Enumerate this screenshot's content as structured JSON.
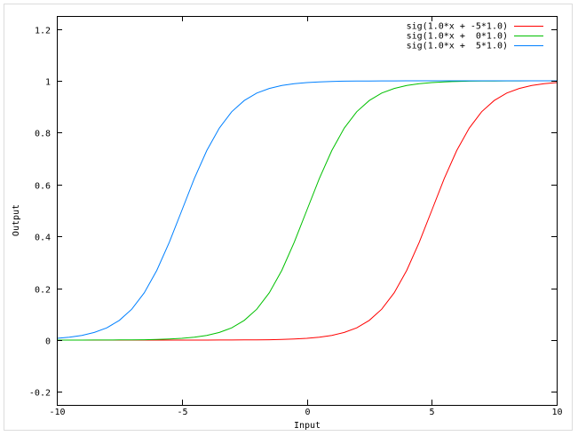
{
  "chart_data": {
    "type": "line",
    "title": "",
    "xlabel": "Input",
    "ylabel": "Output",
    "xlim": [
      -10,
      10
    ],
    "ylim": [
      -0.25,
      1.25
    ],
    "xticks": [
      -10,
      -5,
      0,
      5,
      10
    ],
    "xtick_labels": [
      "-10",
      "-5",
      "0",
      "5",
      "10"
    ],
    "yticks": [
      -0.2,
      0,
      0.2,
      0.4,
      0.6,
      0.8,
      1,
      1.2
    ],
    "ytick_labels": [
      "-0.2",
      "0",
      "0.2",
      "0.4",
      "0.6",
      "0.8",
      "1",
      "1.2"
    ],
    "grid": false,
    "legend_position": "top-right",
    "x": [
      -10,
      -9.5,
      -9,
      -8.5,
      -8,
      -7.5,
      -7,
      -6.5,
      -6,
      -5.5,
      -5,
      -4.5,
      -4,
      -3.5,
      -3,
      -2.5,
      -2,
      -1.5,
      -1,
      -0.5,
      0,
      0.5,
      1,
      1.5,
      2,
      2.5,
      3,
      3.5,
      4,
      4.5,
      5,
      5.5,
      6,
      6.5,
      7,
      7.5,
      8,
      8.5,
      9,
      9.5,
      10
    ],
    "series": [
      {
        "name": "sig(1.0*x + -5*1.0)",
        "color": "#ff0000",
        "values": [
          0,
          0,
          0,
          0,
          0,
          0,
          0,
          0,
          0,
          0,
          0,
          0.0001,
          0.0001,
          0.0002,
          0.0003,
          0.0006,
          0.0009,
          0.0015,
          0.0025,
          0.0041,
          0.0067,
          0.011,
          0.018,
          0.0293,
          0.0474,
          0.0759,
          0.1192,
          0.1824,
          0.2689,
          0.3775,
          0.5,
          0.6225,
          0.7311,
          0.8176,
          0.8808,
          0.9241,
          0.9526,
          0.9707,
          0.982,
          0.989,
          0.9933
        ]
      },
      {
        "name": "sig(1.0*x +  0*1.0)",
        "color": "#00c000",
        "values": [
          0,
          0.0001,
          0.0001,
          0.0002,
          0.0003,
          0.0006,
          0.0009,
          0.0015,
          0.0025,
          0.0041,
          0.0067,
          0.011,
          0.018,
          0.0293,
          0.0474,
          0.0759,
          0.1192,
          0.1824,
          0.2689,
          0.3775,
          0.5,
          0.6225,
          0.7311,
          0.8176,
          0.8808,
          0.9241,
          0.9526,
          0.9707,
          0.982,
          0.989,
          0.9933,
          0.9959,
          0.9975,
          0.9985,
          0.9991,
          0.9994,
          0.9997,
          0.9998,
          0.9999,
          0.9999,
          1
        ]
      },
      {
        "name": "sig(1.0*x +  5*1.0)",
        "color": "#0080ff",
        "values": [
          0.0067,
          0.011,
          0.018,
          0.0293,
          0.0474,
          0.0759,
          0.1192,
          0.1824,
          0.2689,
          0.3775,
          0.5,
          0.6225,
          0.7311,
          0.8176,
          0.8808,
          0.9241,
          0.9526,
          0.9707,
          0.982,
          0.989,
          0.9933,
          0.9959,
          0.9975,
          0.9985,
          0.9991,
          0.9994,
          0.9997,
          0.9998,
          0.9999,
          0.9999,
          1,
          1,
          1,
          1,
          1,
          1,
          1,
          1,
          1,
          1,
          1
        ]
      }
    ]
  }
}
